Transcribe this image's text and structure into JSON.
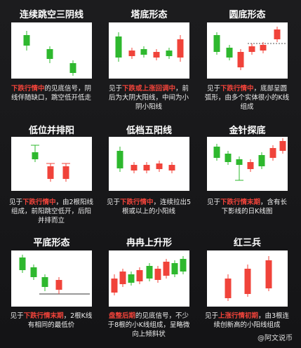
{
  "cards": [
    {
      "title": "连续跳空三阴线",
      "desc": [
        {
          "text": "下跌行情中",
          "highlight": true
        },
        {
          "text": "的见底信号，阴线伴随缺口，跳空低开低走"
        }
      ]
    },
    {
      "title": "塔底形态",
      "desc": [
        {
          "text": "见于"
        },
        {
          "text": "下跌或上涨回调中",
          "highlight": true
        },
        {
          "text": "，前后为大阴大阳线，中间为小阴小阳线"
        }
      ]
    },
    {
      "title": "圆底形态",
      "desc": [
        {
          "text": "见于"
        },
        {
          "text": "下跌行情中",
          "highlight": true
        },
        {
          "text": "，底部呈圆弧形，由多个实体很小的K线组成"
        }
      ]
    },
    {
      "title": "低位并排阳",
      "desc": [
        {
          "text": "见于"
        },
        {
          "text": "下跌行情中",
          "highlight": true
        },
        {
          "text": "，由2根阳线组成，前阳跳空低开，后阳并排而立"
        }
      ]
    },
    {
      "title": "低档五阳线",
      "desc": [
        {
          "text": "见于"
        },
        {
          "text": "下跌行情中",
          "highlight": true
        },
        {
          "text": "，连续拉出5根或以上的小阳线"
        }
      ]
    },
    {
      "title": "金针探底",
      "desc": [
        {
          "text": "见于"
        },
        {
          "text": "下跌行情末期",
          "highlight": true
        },
        {
          "text": "，含有长下影线的日K线图"
        }
      ]
    },
    {
      "title": "平底形态",
      "desc": [
        {
          "text": "见于"
        },
        {
          "text": "下跌行情末期",
          "highlight": true
        },
        {
          "text": "，2根K线有相同的最低价"
        }
      ]
    },
    {
      "title": "冉冉上升形",
      "desc": [
        {
          "text": "盘整后期",
          "highlight": true
        },
        {
          "text": "的见底信号，不少于8根的小K线组成，呈略微向上倾斜状"
        }
      ]
    },
    {
      "title": "红三兵",
      "desc": [
        {
          "text": "见于"
        },
        {
          "text": "上涨行情初期",
          "highlight": true
        },
        {
          "text": "，由3根连续创新高的小阳线组成"
        }
      ]
    }
  ],
  "watermark": "@阿文说币"
}
